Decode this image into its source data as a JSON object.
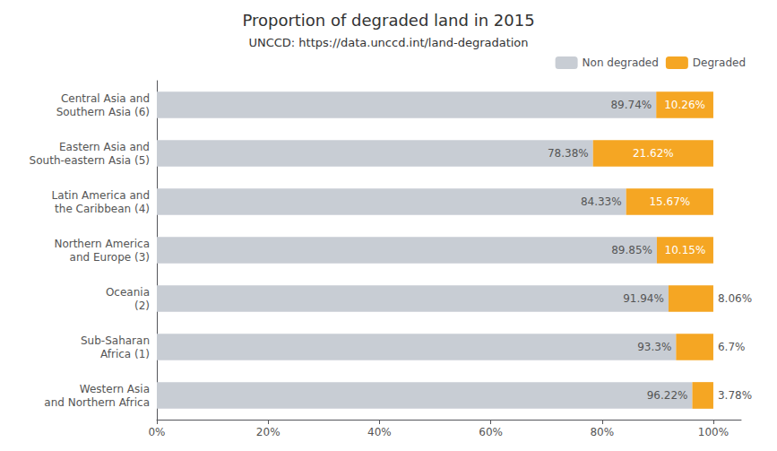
{
  "chart_data": {
    "type": "bar",
    "orientation": "horizontal",
    "stacked": true,
    "title": "Proportion of degraded land in 2015",
    "subtitle": "UNCCD: https://data.unccd.int/land-degradation",
    "categories": [
      "Central Asia and\nSouthern Asia (6)",
      "Eastern Asia and\nSouth-eastern Asia (5)",
      "Latin America and\nthe Caribbean (4)",
      "Northern America\nand Europe (3)",
      "Oceania\n(2)",
      "Sub-Saharan\nAfrica (1)",
      "Western Asia\nand Northern Africa"
    ],
    "series": [
      {
        "name": "Non degraded",
        "color": "#c8cdd4",
        "values": [
          89.74,
          78.38,
          84.33,
          89.85,
          91.94,
          93.3,
          96.22
        ],
        "value_labels": [
          "89.74%",
          "78.38%",
          "84.33%",
          "89.85%",
          "91.94%",
          "93.3%",
          "96.22%"
        ]
      },
      {
        "name": "Degraded",
        "color": "#f5a623",
        "values": [
          10.26,
          21.62,
          15.67,
          10.15,
          8.06,
          6.7,
          3.78
        ],
        "value_labels": [
          "10.26%",
          "21.62%",
          "15.67%",
          "10.15%",
          "8.06%",
          "6.7%",
          "3.78%"
        ]
      }
    ],
    "xlim": [
      0,
      105
    ],
    "xticks": [
      {
        "value": 0,
        "label": "0%"
      },
      {
        "value": 20,
        "label": "20%"
      },
      {
        "value": 40,
        "label": "40%"
      },
      {
        "value": 60,
        "label": "60%"
      },
      {
        "value": 80,
        "label": "80%"
      },
      {
        "value": 100,
        "label": "100%"
      }
    ],
    "data_labels": true,
    "grid": false,
    "legend": "upper right"
  }
}
